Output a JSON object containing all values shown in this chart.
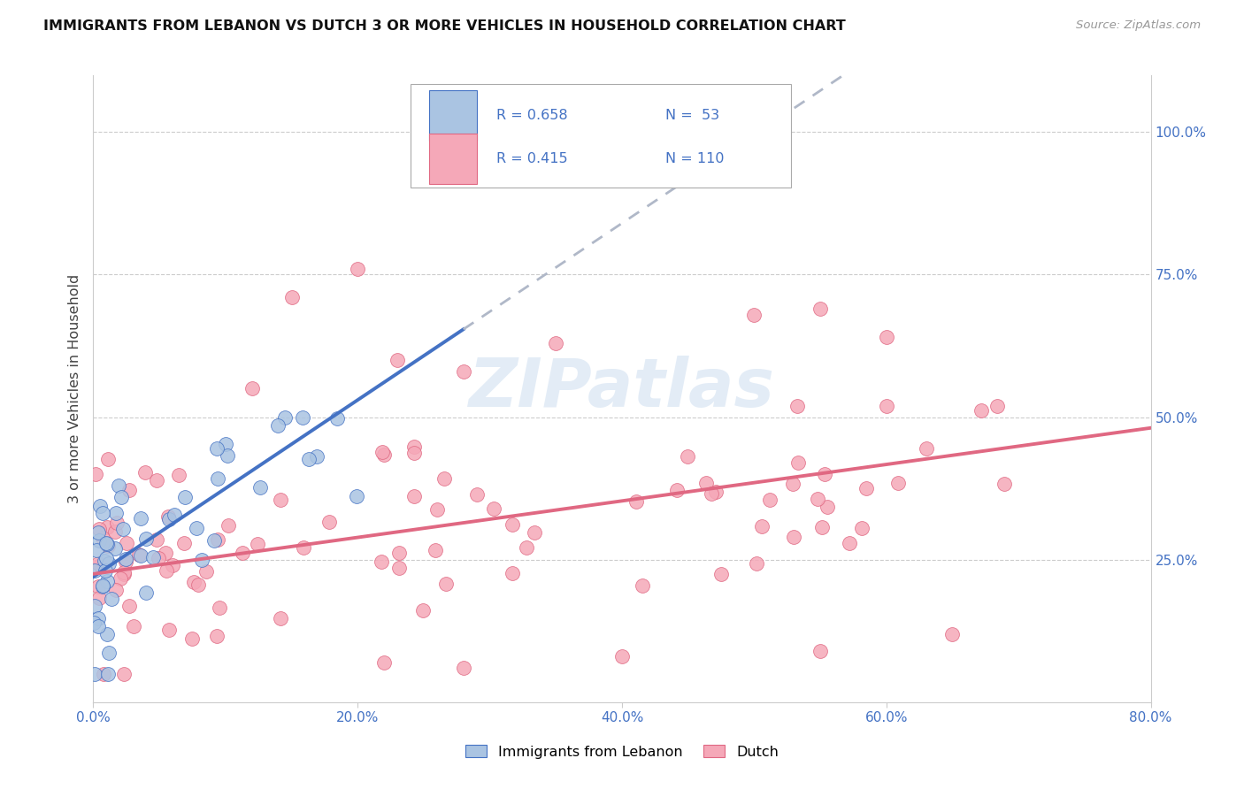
{
  "title": "IMMIGRANTS FROM LEBANON VS DUTCH 3 OR MORE VEHICLES IN HOUSEHOLD CORRELATION CHART",
  "source": "Source: ZipAtlas.com",
  "ylabel": "3 or more Vehicles in Household",
  "xlim": [
    0.0,
    80.0
  ],
  "ylim": [
    0.0,
    110.0
  ],
  "x_ticks": [
    0,
    20,
    40,
    60,
    80
  ],
  "x_tick_labels": [
    "0.0%",
    "20.0%",
    "40.0%",
    "60.0%",
    "80.0%"
  ],
  "y_ticks_right": [
    25,
    50,
    75,
    100
  ],
  "y_tick_labels_right": [
    "25.0%",
    "50.0%",
    "75.0%",
    "100.0%"
  ],
  "legend_R1": "R = 0.658",
  "legend_N1": "N =  53",
  "legend_R2": "R = 0.415",
  "legend_N2": "N = 110",
  "color_lebanon": "#aac4e2",
  "color_dutch": "#f5a8b8",
  "color_lebanon_line": "#4472c4",
  "color_dutch_line": "#e06882",
  "color_text": "#4472c4",
  "color_grid": "#cccccc",
  "watermark_color": "#ccddf0",
  "leb_intercept": 22.0,
  "leb_slope": 1.55,
  "dutch_intercept": 22.5,
  "dutch_slope": 0.32,
  "leb_solid_end": 28.0,
  "leb_dash_end": 80.0
}
